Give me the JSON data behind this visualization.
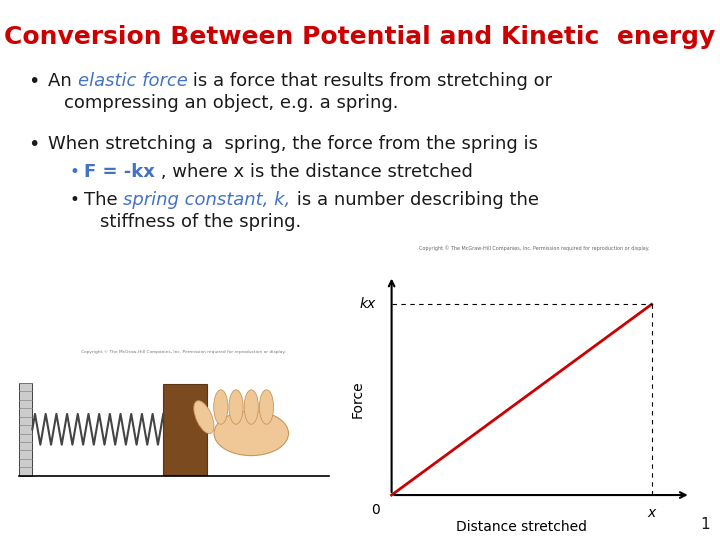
{
  "title": "Conversion Between Potential and Kinetic  energy",
  "title_color": "#CC0000",
  "title_fontsize": 18,
  "background_color": "#FFFFFF",
  "graph_bg": "#F5E6C8",
  "graph_line_color": "#CC0000",
  "graph_xlabel": "Distance stretched",
  "graph_ylabel": "Force",
  "graph_kx_label": "kx",
  "graph_x_label": "x",
  "graph_origin_label": "0",
  "copyright_text": "Copyright © The McGraw-Hill Companies, Inc. Permission required for reproduction or display.",
  "page_number": "1",
  "body_fontsize": 13,
  "blue_color": "#4472C4",
  "black_color": "#1A1A1A",
  "bullet_char": "•"
}
